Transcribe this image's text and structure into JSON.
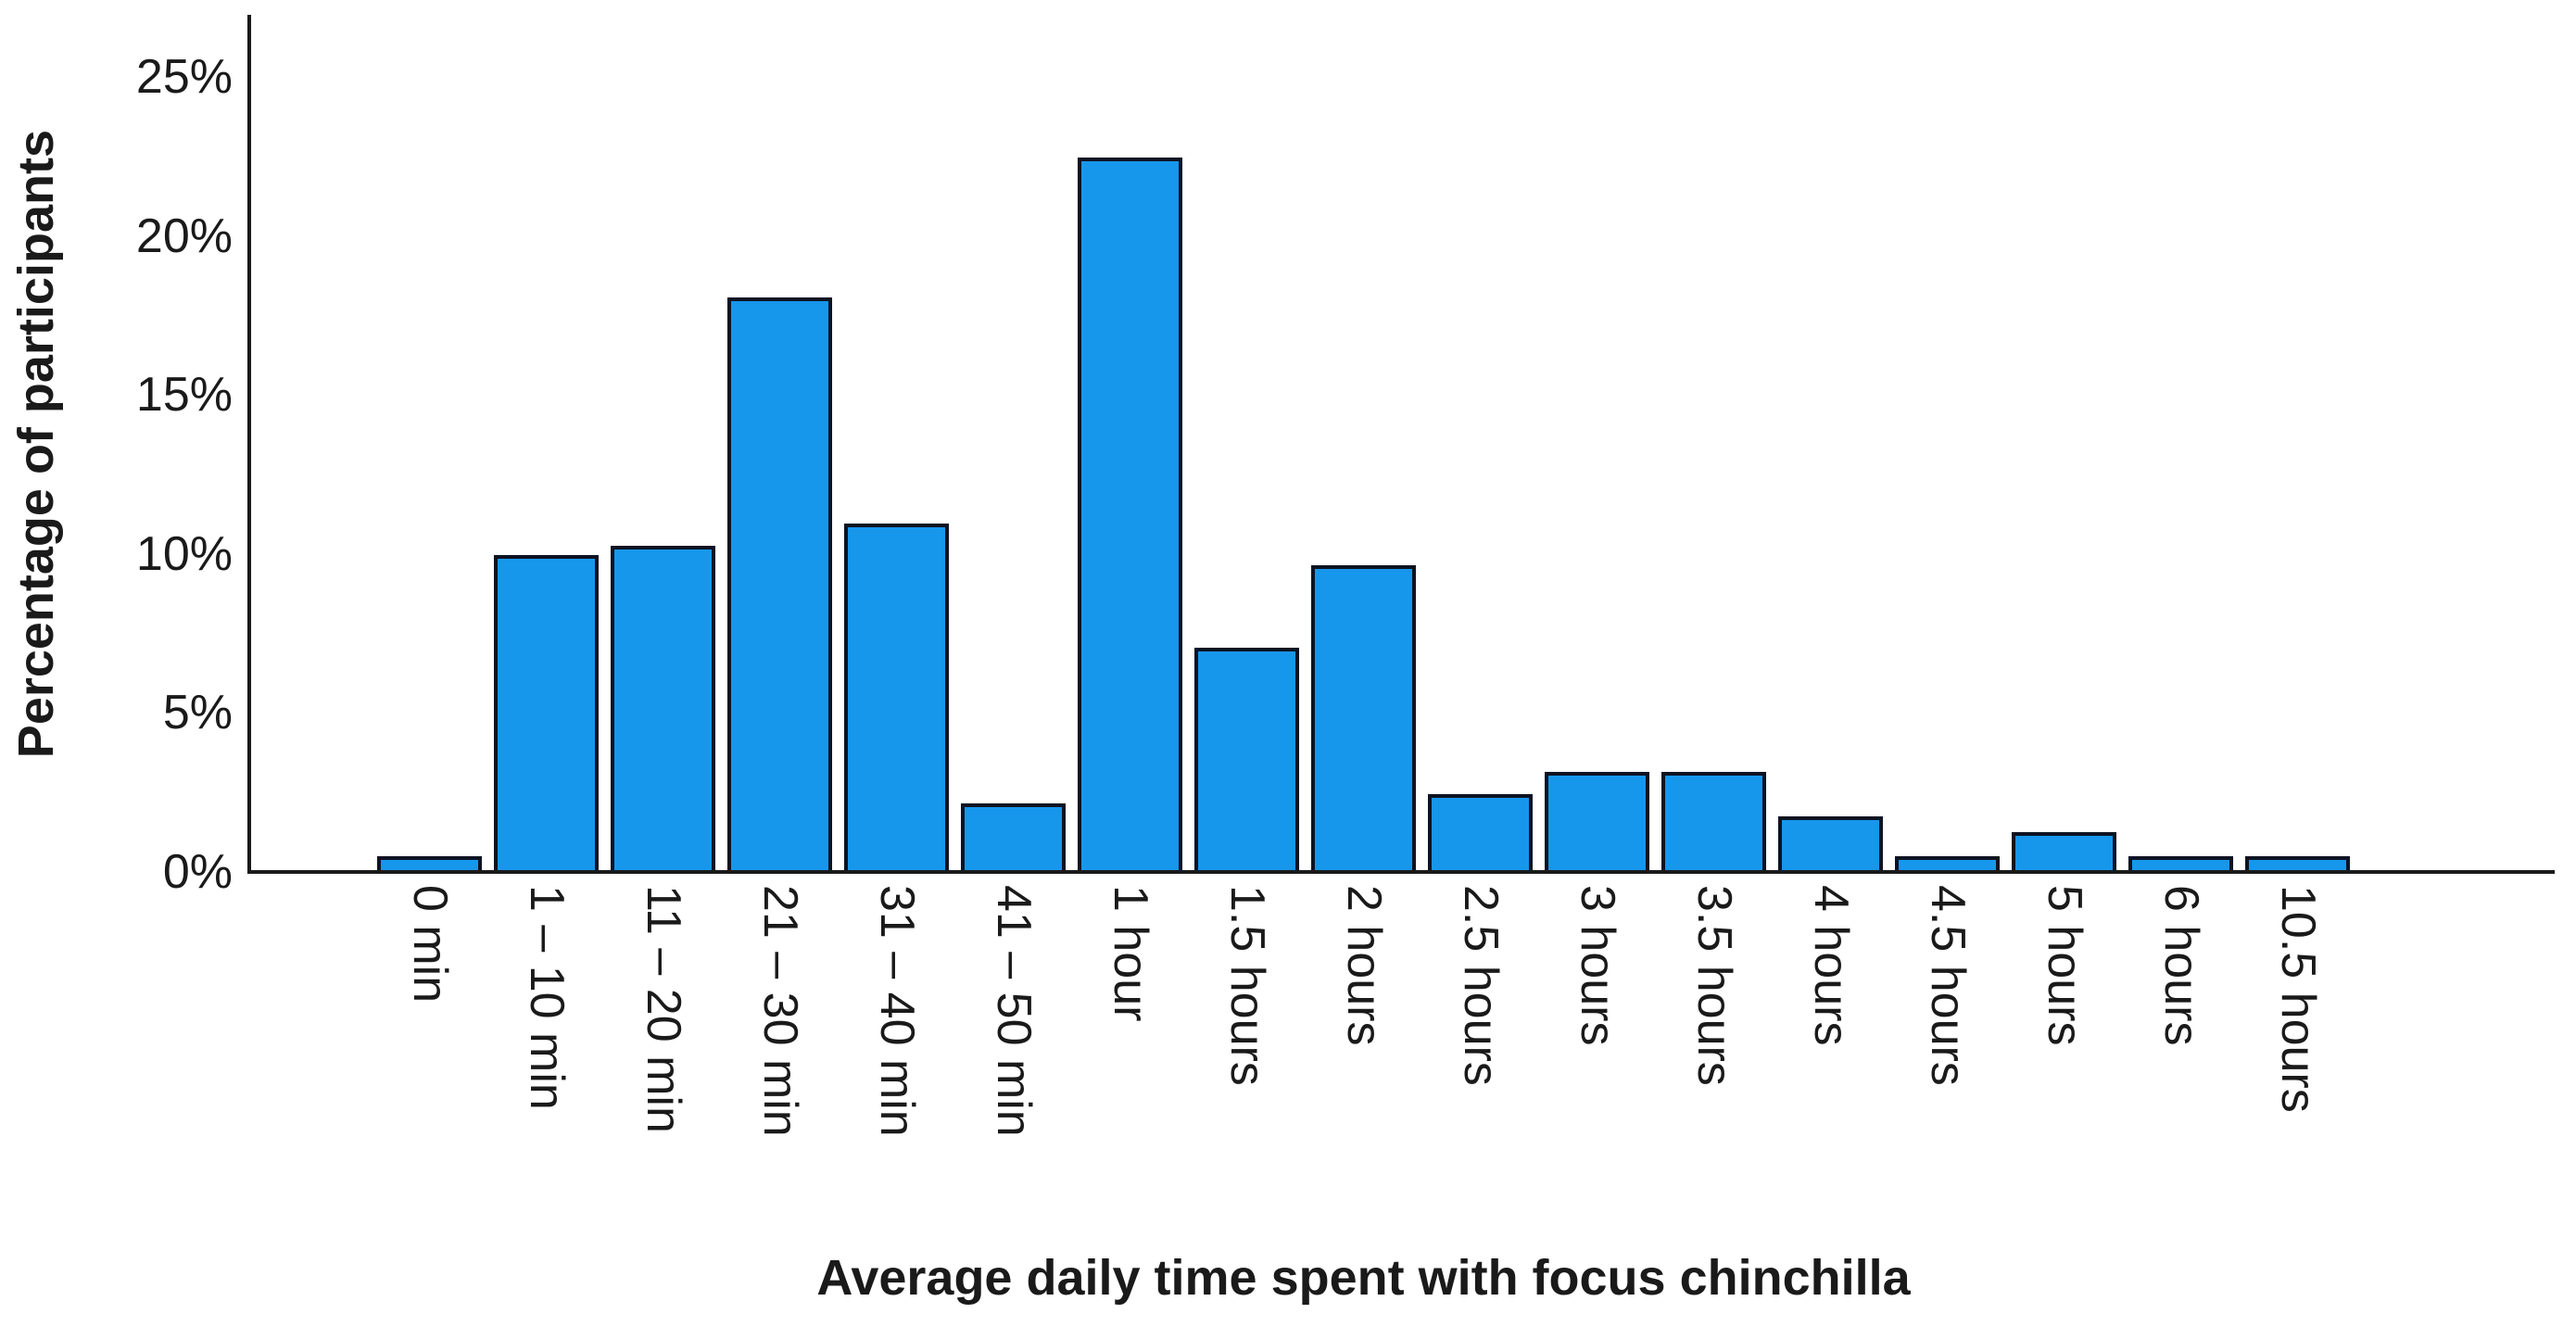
{
  "chart_data": {
    "type": "bar",
    "title": "",
    "xlabel": "Average daily time spent with focus chinchilla",
    "ylabel": "Percentage of participants",
    "categories": [
      "0 min",
      "1 – 10 min",
      "11 – 20 min",
      "21 – 30 min",
      "31 – 40 min",
      "41 – 50 min",
      "1 hour",
      "1.5 hours",
      "2 hours",
      "2.5 hours",
      "3 hours",
      "3.5 hours",
      "4 hours",
      "4.5 hours",
      "5 hours",
      "6 hours",
      "10.5 hours"
    ],
    "values": [
      0.45,
      9.9,
      10.2,
      18.0,
      10.9,
      2.1,
      22.4,
      7.0,
      9.6,
      2.4,
      3.1,
      3.1,
      1.7,
      0.45,
      1.2,
      0.45,
      0.45
    ],
    "y_axis": {
      "ticks": [
        {
          "label": "0%",
          "value": 0
        },
        {
          "label": "5%",
          "value": 5
        },
        {
          "label": "10%",
          "value": 10
        },
        {
          "label": "15%",
          "value": 15
        },
        {
          "label": "20%",
          "value": 20
        },
        {
          "label": "25%",
          "value": 25
        }
      ],
      "range": [
        0,
        27
      ]
    },
    "grid": false,
    "legend_position": "none",
    "colors": {
      "bar_fill": "#1697ec",
      "bar_border": "#0d1322",
      "axis": "#1a1a1a",
      "text": "#1a1a1a",
      "background": "#ffffff"
    }
  }
}
